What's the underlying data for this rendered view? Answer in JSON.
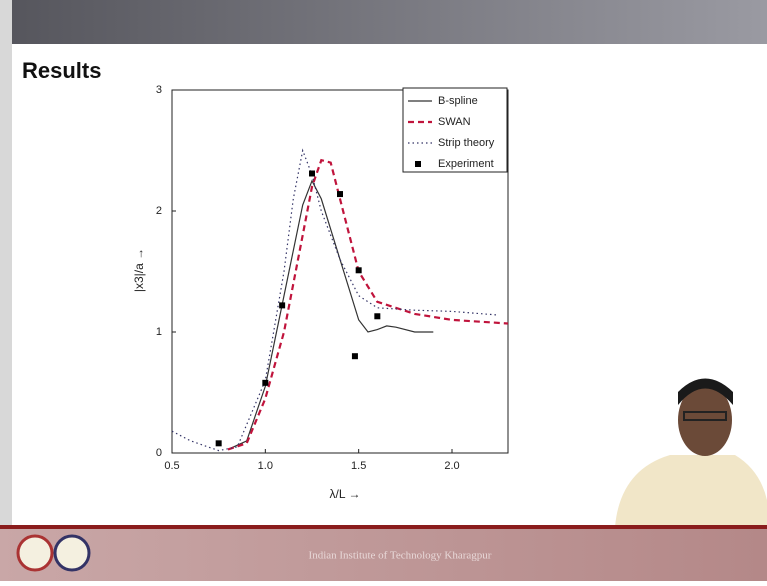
{
  "slide_title": "Results",
  "footer": "Indian Institute of Technology Kharagpur",
  "chart_data": {
    "type": "line",
    "x_label": "λ/L →",
    "y_label": "|x3|/a →",
    "xlim": [
      0.5,
      2.3
    ],
    "ylim": [
      0,
      3
    ],
    "xticks": [
      0.5,
      {
        "value": 1,
        "label": "1.0"
      },
      1.5,
      {
        "value": 2,
        "label": "2.0"
      }
    ],
    "yticks": [
      0,
      1,
      2,
      3
    ],
    "legend": "upper right",
    "series": [
      {
        "name": "B-spline",
        "color": "#333333",
        "style": "solid",
        "x": [
          0.8,
          0.9,
          1.0,
          1.1,
          1.2,
          1.25,
          1.3,
          1.4,
          1.5,
          1.55,
          1.6,
          1.65,
          1.7,
          1.8,
          1.9
        ],
        "values": [
          0.03,
          0.1,
          0.55,
          1.3,
          2.05,
          2.25,
          2.1,
          1.6,
          1.1,
          1.0,
          1.02,
          1.05,
          1.04,
          1.0,
          1.0
        ]
      },
      {
        "name": "SWAN",
        "color": "#c0143c",
        "style": "dashed",
        "x": [
          0.8,
          0.9,
          1.0,
          1.1,
          1.2,
          1.25,
          1.3,
          1.35,
          1.4,
          1.5,
          1.6,
          1.8,
          2.0,
          2.3
        ],
        "values": [
          0.03,
          0.08,
          0.45,
          1.0,
          1.8,
          2.2,
          2.42,
          2.4,
          2.1,
          1.5,
          1.25,
          1.15,
          1.1,
          1.07
        ]
      },
      {
        "name": "Strip theory",
        "color": "#333366",
        "style": "dotted",
        "x": [
          0.5,
          0.6,
          0.75,
          0.85,
          1.0,
          1.1,
          1.15,
          1.2,
          1.25,
          1.3,
          1.4,
          1.5,
          1.6,
          1.8,
          2.0,
          2.25
        ],
        "values": [
          0.18,
          0.1,
          0.02,
          0.05,
          0.6,
          1.5,
          2.1,
          2.5,
          2.3,
          2.0,
          1.6,
          1.3,
          1.2,
          1.18,
          1.17,
          1.14
        ]
      },
      {
        "name": "Experiment",
        "color": "#000000",
        "style": "markers",
        "x": [
          0.75,
          1.0,
          1.09,
          1.25,
          1.4,
          1.5,
          1.48,
          1.6
        ],
        "values": [
          0.08,
          0.58,
          1.22,
          2.31,
          2.14,
          1.51,
          0.8,
          1.13
        ]
      }
    ]
  }
}
